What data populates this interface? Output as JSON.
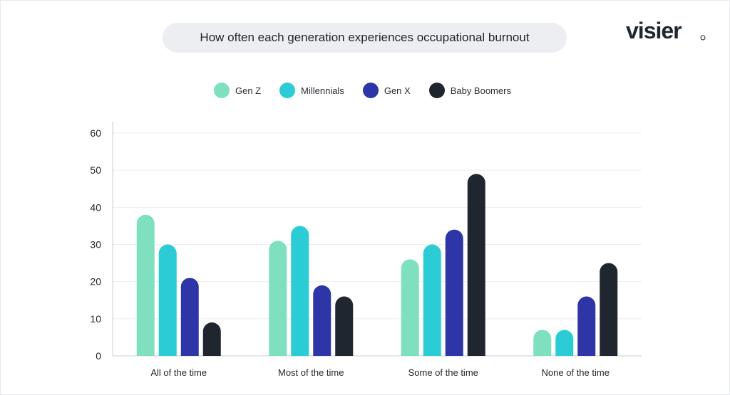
{
  "title": "How often each generation experiences occupational burnout",
  "brand": "visier",
  "colors": {
    "gen_z": "#7ee0bf",
    "millennials": "#2bccd5",
    "gen_x": "#2e35a6",
    "boomers": "#1f2630",
    "grid": "#eceef0",
    "axis": "#c9ccd1"
  },
  "chart_data": {
    "type": "bar",
    "title": "How often each generation experiences occupational burnout",
    "xlabel": "",
    "ylabel": "",
    "ylim": [
      0,
      60
    ],
    "yticks": [
      0,
      10,
      20,
      30,
      40,
      50,
      60
    ],
    "grid": true,
    "legend_position": "top-center",
    "categories": [
      "All of the time",
      "Most of the time",
      "Some of the time",
      "None of the time"
    ],
    "series": [
      {
        "name": "Gen Z",
        "color": "#7ee0bf",
        "values": [
          38,
          31,
          26,
          7
        ]
      },
      {
        "name": "Millennials",
        "color": "#2bccd5",
        "values": [
          30,
          35,
          30,
          7
        ]
      },
      {
        "name": "Gen X",
        "color": "#2e35a6",
        "values": [
          21,
          19,
          34,
          16
        ]
      },
      {
        "name": "Baby Boomers",
        "color": "#1f2630",
        "values": [
          9,
          16,
          49,
          25
        ]
      }
    ]
  }
}
